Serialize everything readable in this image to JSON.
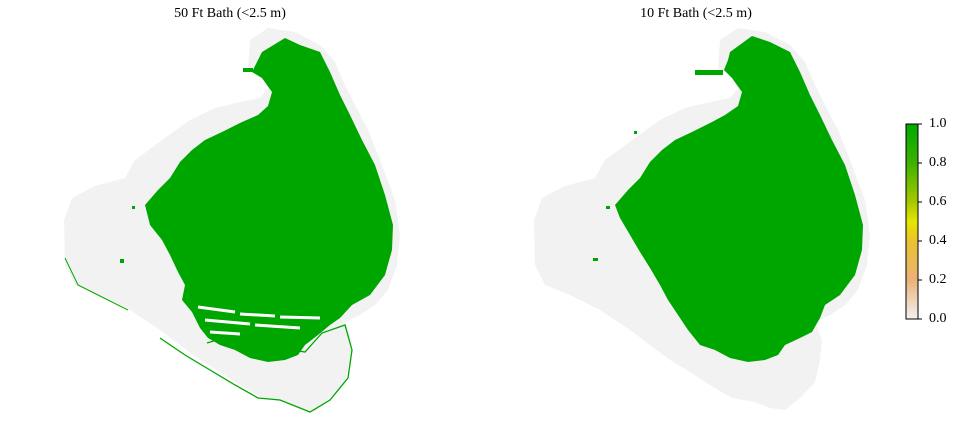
{
  "panels": [
    {
      "title": "50 Ft Bath (<2.5 m)",
      "fraction_value": 1.0
    },
    {
      "title": "10 Ft Bath (<2.5 m)",
      "fraction_value": 1.0
    }
  ],
  "legend": {
    "ticks": [
      "1.0",
      "0.8",
      "0.6",
      "0.4",
      "0.2",
      "0.0"
    ],
    "range": [
      0.0,
      1.0
    ],
    "color_stops": [
      {
        "value": 1.0,
        "color": "#00a600"
      },
      {
        "value": 0.8,
        "color": "#3cb300"
      },
      {
        "value": 0.6,
        "color": "#a6c800"
      },
      {
        "value": 0.5,
        "color": "#e6e600"
      },
      {
        "value": 0.4,
        "color": "#e8c32e"
      },
      {
        "value": 0.2,
        "color": "#ecb176"
      },
      {
        "value": 0.0,
        "color": "#f2f2f2"
      }
    ]
  },
  "colors": {
    "land_background": "#f2f2f2",
    "shallow_fill": "#00a600"
  }
}
